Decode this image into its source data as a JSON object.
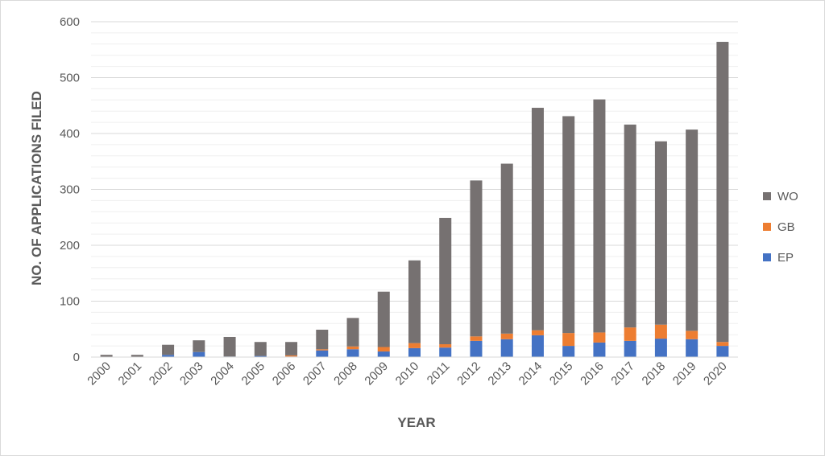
{
  "chart_data": {
    "type": "bar",
    "stacked": true,
    "categories": [
      "2000",
      "2001",
      "2002",
      "2003",
      "2004",
      "2005",
      "2006",
      "2007",
      "2008",
      "2009",
      "2010",
      "2011",
      "2012",
      "2013",
      "2014",
      "2015",
      "2016",
      "2017",
      "2018",
      "2019",
      "2020"
    ],
    "series": [
      {
        "name": "EP",
        "color": "#4472c4",
        "values": [
          0,
          0,
          4,
          9,
          1,
          2,
          1,
          12,
          14,
          10,
          16,
          17,
          29,
          32,
          39,
          20,
          26,
          29,
          33,
          32,
          20
        ]
      },
      {
        "name": "GB",
        "color": "#ed7d31",
        "values": [
          0,
          0,
          0,
          0,
          0,
          0,
          2,
          2,
          5,
          8,
          9,
          6,
          8,
          10,
          9,
          23,
          18,
          24,
          25,
          15,
          7
        ]
      },
      {
        "name": "WO",
        "color": "#767171",
        "values": [
          4,
          4,
          18,
          21,
          35,
          25,
          24,
          35,
          51,
          99,
          148,
          226,
          279,
          304,
          398,
          388,
          417,
          363,
          328,
          360,
          537
        ]
      }
    ],
    "title": "",
    "xlabel": "YEAR",
    "ylabel": "NO. OF APPLICATIONS FILED",
    "ylim": [
      0,
      600
    ],
    "yticks": [
      "0",
      "100",
      "200",
      "300",
      "400",
      "500",
      "600"
    ],
    "grid": true,
    "legend": "right"
  }
}
